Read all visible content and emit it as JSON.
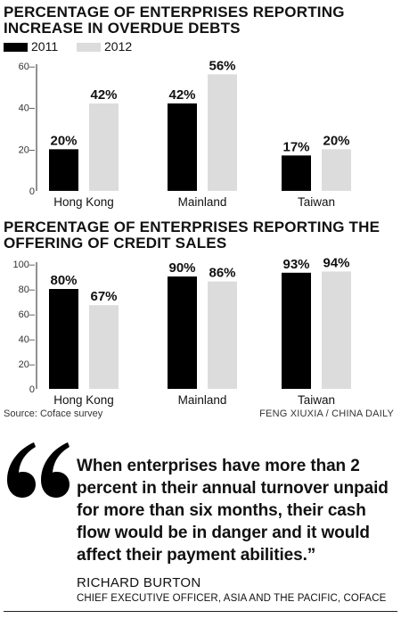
{
  "legend": [
    {
      "label": "2011",
      "color": "#000000"
    },
    {
      "label": "2012",
      "color": "#dcdcdc"
    }
  ],
  "chart_data": [
    {
      "type": "bar",
      "title": "PERCENTAGE OF ENTERPRISES REPORTING INCREASE IN OVERDUE DEBTS",
      "categories": [
        "Hong Kong",
        "Mainland",
        "Taiwan"
      ],
      "series": [
        {
          "name": "2011",
          "values": [
            20,
            42,
            17
          ],
          "labels": [
            "20%",
            "42%",
            "17%"
          ],
          "color": "#000000"
        },
        {
          "name": "2012",
          "values": [
            42,
            56,
            20
          ],
          "labels": [
            "42%",
            "56%",
            "20%"
          ],
          "color": "#dcdcdc"
        }
      ],
      "ylim": [
        0,
        60
      ],
      "yticks": [
        0,
        20,
        40,
        60
      ],
      "ytick_labels": [
        "0",
        "20–",
        "40–",
        "60–"
      ],
      "grid": false
    },
    {
      "type": "bar",
      "title": "PERCENTAGE OF ENTERPRISES REPORTING THE OFFERING OF CREDIT SALES",
      "categories": [
        "Hong Kong",
        "Mainland",
        "Taiwan"
      ],
      "series": [
        {
          "name": "2011",
          "values": [
            80,
            90,
            93
          ],
          "labels": [
            "80%",
            "90%",
            "93%"
          ],
          "color": "#000000"
        },
        {
          "name": "2012",
          "values": [
            67,
            86,
            94
          ],
          "labels": [
            "67%",
            "86%",
            "94%"
          ],
          "color": "#dcdcdc"
        }
      ],
      "ylim": [
        0,
        100
      ],
      "yticks": [
        0,
        20,
        40,
        60,
        80,
        100
      ],
      "ytick_labels": [
        "0",
        "20–",
        "40–",
        "60–",
        "80–",
        "100–"
      ],
      "grid": false
    }
  ],
  "footer": {
    "source": "Source: Coface survey",
    "credit": "FENG XIUXIA / CHINA DAILY"
  },
  "quote": {
    "text": "When enterprises have more than 2 percent in their annual turnover unpaid for more than six months, their cash flow would be in danger and it would affect their payment abilities.”",
    "name": "RICHARD BURTON",
    "role": "CHIEF EXECUTIVE OFFICER, ASIA AND THE PACIFIC, COFACE",
    "mark_icon": "opening-quote-icon"
  }
}
